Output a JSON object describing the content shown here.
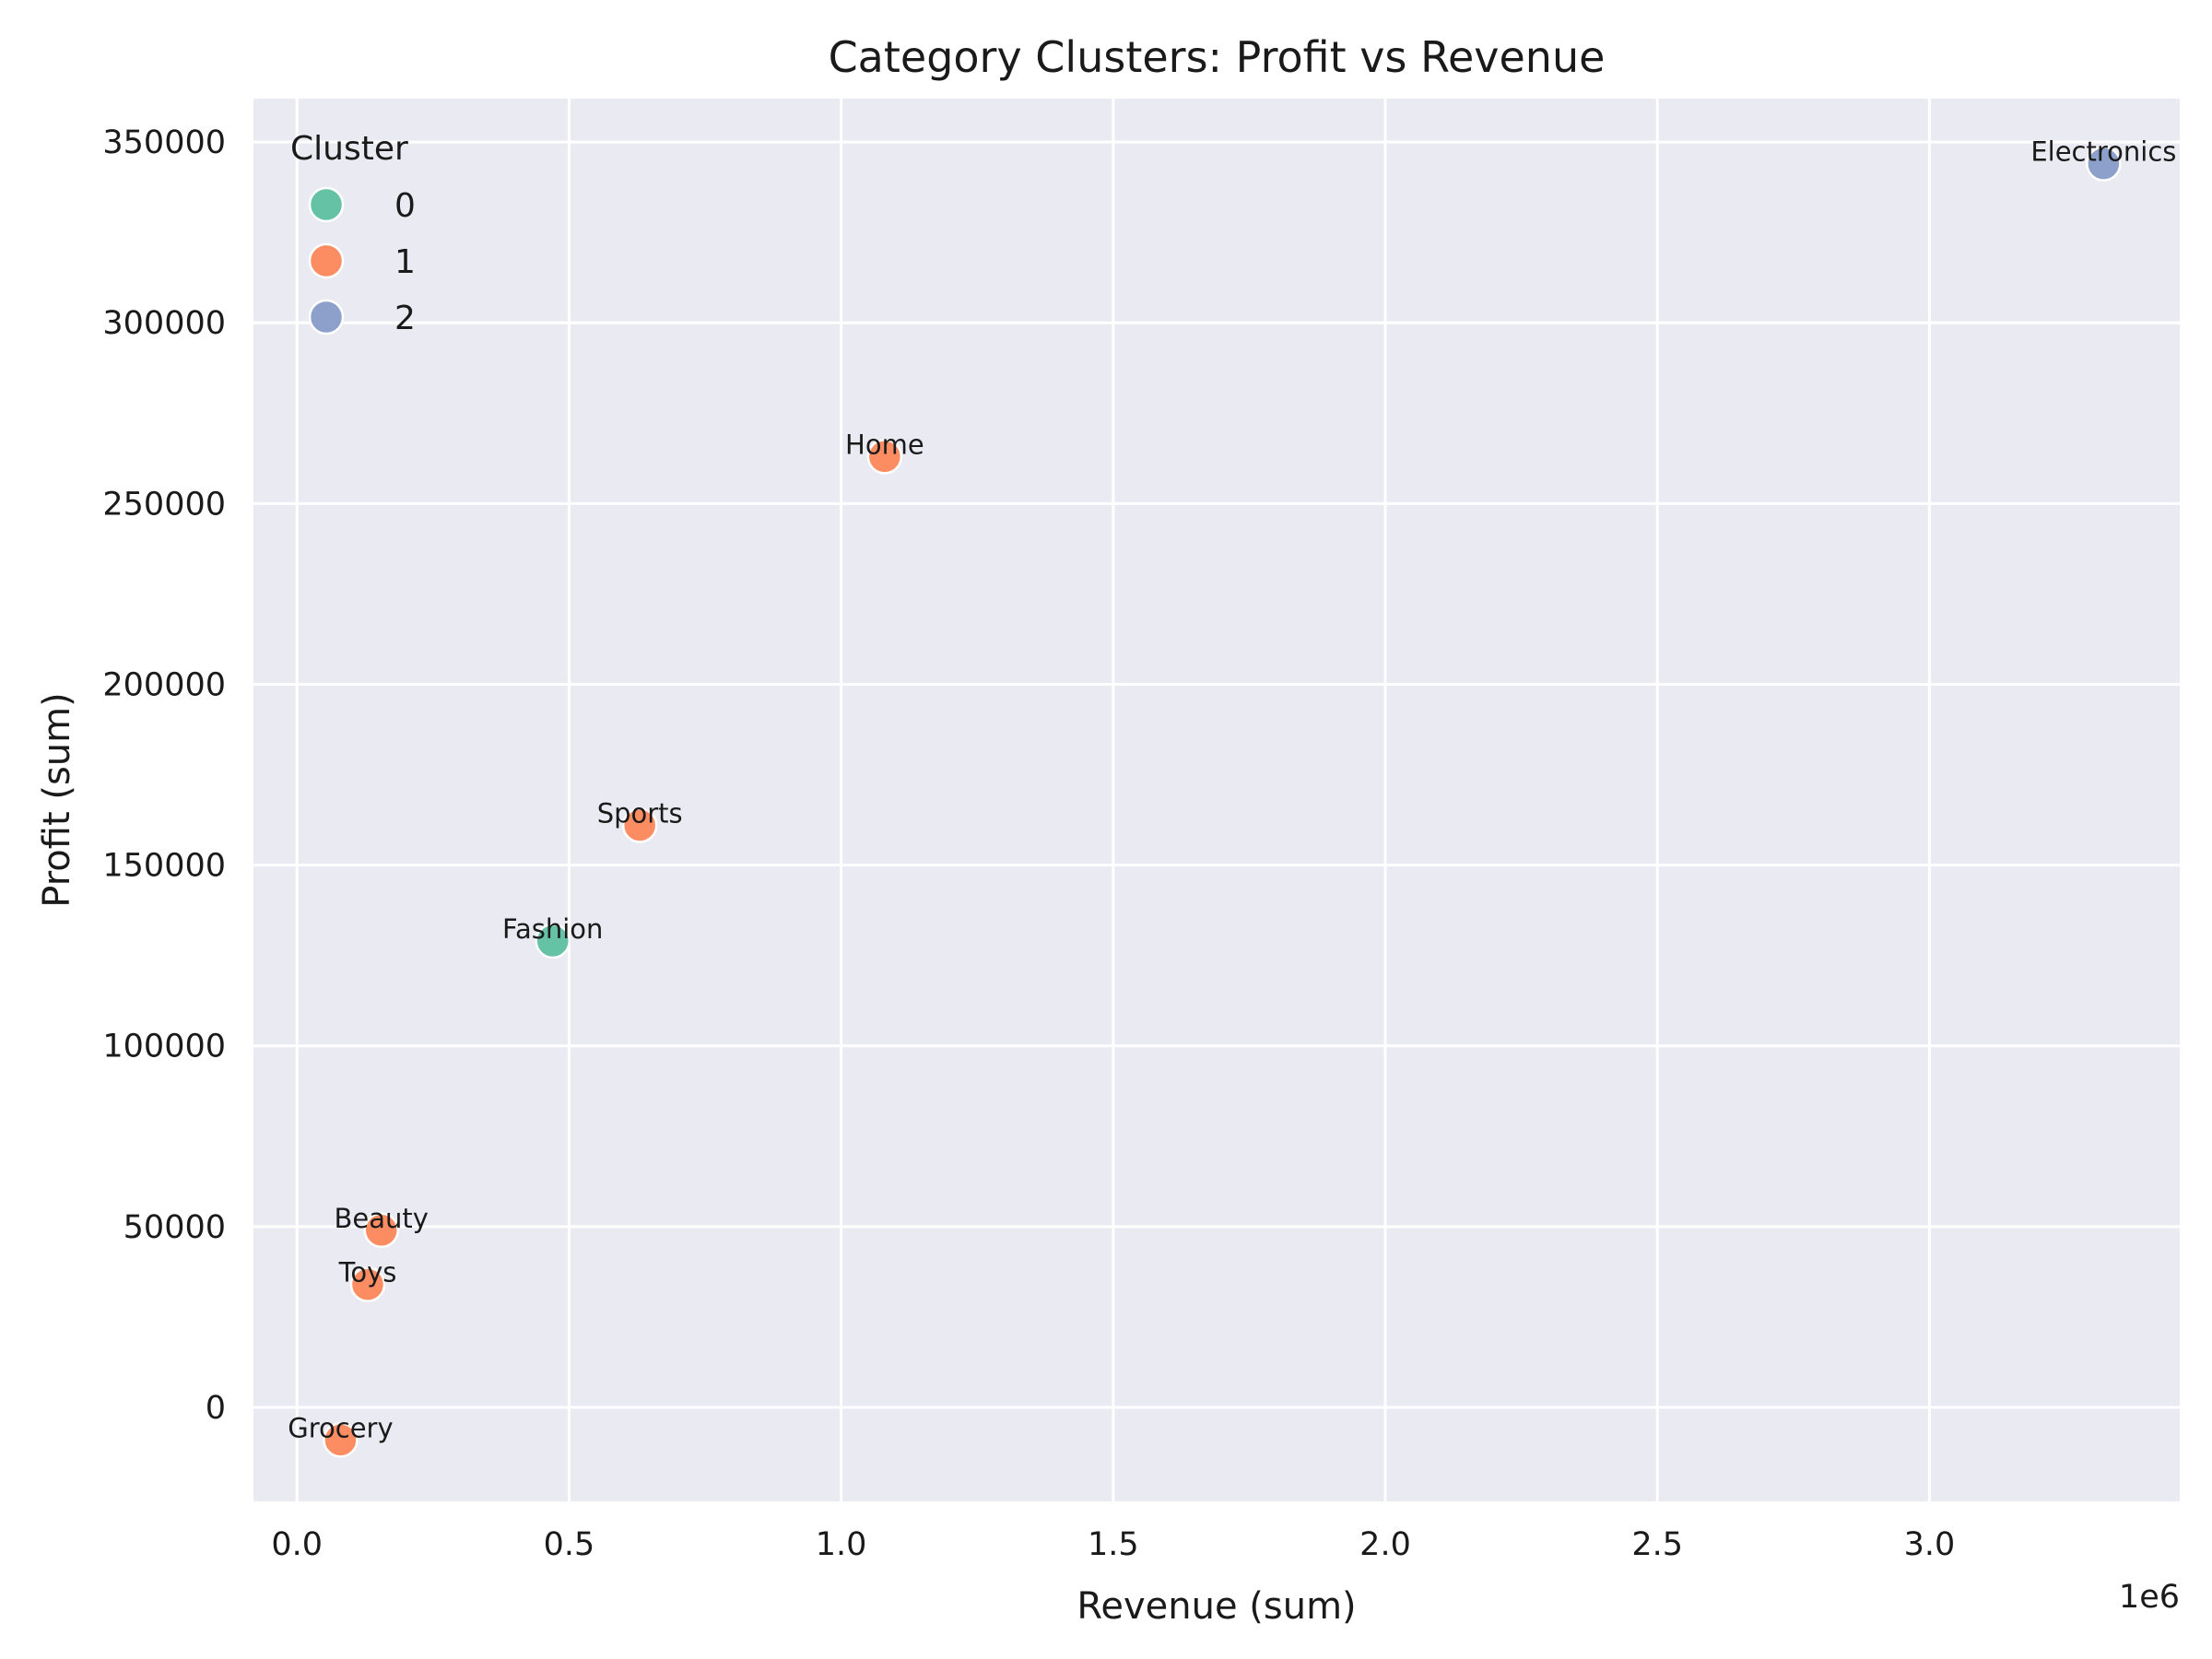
{
  "chart_data": {
    "type": "scatter",
    "title": "Category Clusters: Profit vs Revenue",
    "xlabel": "Revenue (sum)",
    "ylabel": "Profit (sum)",
    "x_offset_label": "1e6",
    "xlim": [
      -0.08,
      3.46
    ],
    "ylim": [
      -26000,
      362000
    ],
    "x_ticks": [
      0.0,
      0.5,
      1.0,
      1.5,
      2.0,
      2.5,
      3.0
    ],
    "x_tick_labels": [
      "0.0",
      "0.5",
      "1.0",
      "1.5",
      "2.0",
      "2.5",
      "3.0"
    ],
    "y_ticks": [
      0,
      50000,
      100000,
      150000,
      200000,
      250000,
      300000,
      350000
    ],
    "y_tick_labels": [
      "0",
      "50000",
      "100000",
      "150000",
      "200000",
      "250000",
      "300000",
      "350000"
    ],
    "grid": true,
    "background": "#eaeaf2",
    "legend": {
      "title": "Cluster",
      "position": "top-left",
      "entries": [
        {
          "label": "0",
          "color": "#66c2a5"
        },
        {
          "label": "1",
          "color": "#fc8d62"
        },
        {
          "label": "2",
          "color": "#8da0cb"
        }
      ]
    },
    "points": [
      {
        "label": "Electronics",
        "x": 3.32,
        "y": 344000,
        "cluster": 2
      },
      {
        "label": "Home",
        "x": 1.08,
        "y": 263000,
        "cluster": 1
      },
      {
        "label": "Sports",
        "x": 0.63,
        "y": 161000,
        "cluster": 1
      },
      {
        "label": "Fashion",
        "x": 0.47,
        "y": 129000,
        "cluster": 0
      },
      {
        "label": "Beauty",
        "x": 0.155,
        "y": 49000,
        "cluster": 1
      },
      {
        "label": "Toys",
        "x": 0.13,
        "y": 34000,
        "cluster": 1
      },
      {
        "label": "Grocery",
        "x": 0.08,
        "y": -9000,
        "cluster": 1
      }
    ]
  }
}
